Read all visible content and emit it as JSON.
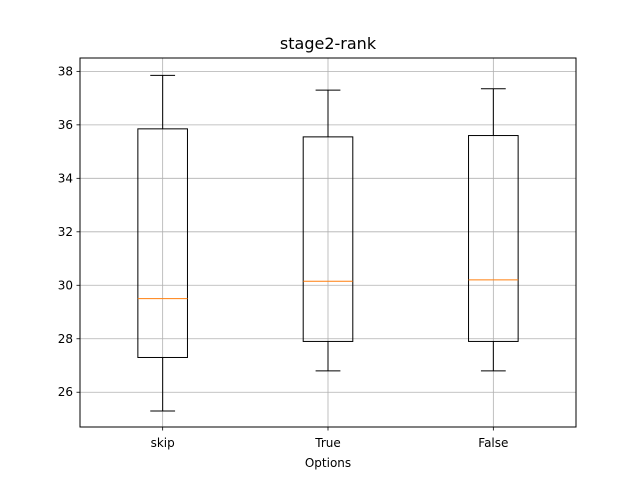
{
  "chart_data": {
    "type": "box",
    "title": "stage2-rank",
    "xlabel": "Options",
    "ylabel": "",
    "ylim": [
      24.7,
      38.5
    ],
    "yticks": [
      26,
      28,
      30,
      32,
      34,
      36,
      38
    ],
    "grid": true,
    "categories": [
      "skip",
      "True",
      "False"
    ],
    "boxes": [
      {
        "category": "skip",
        "whisker_low": 25.3,
        "q1": 27.3,
        "median": 29.5,
        "q3": 35.85,
        "whisker_high": 37.85
      },
      {
        "category": "True",
        "whisker_low": 26.8,
        "q1": 27.9,
        "median": 30.15,
        "q3": 35.55,
        "whisker_high": 37.3
      },
      {
        "category": "False",
        "whisker_low": 26.8,
        "q1": 27.9,
        "median": 30.2,
        "q3": 35.6,
        "whisker_high": 37.35
      }
    ],
    "colors": {
      "box": "#000000",
      "median": "#ff7f0e",
      "grid": "#b0b0b0"
    }
  }
}
